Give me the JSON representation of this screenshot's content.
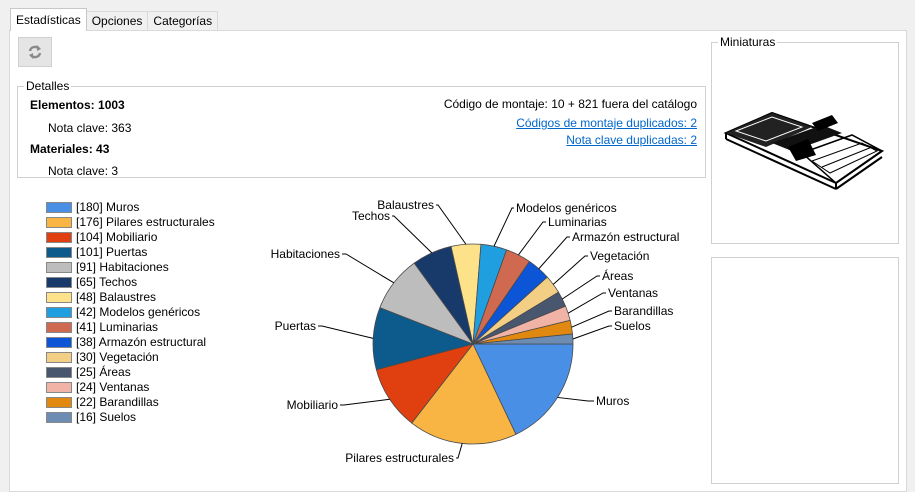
{
  "tabs": [
    {
      "label": "Estadísticas",
      "active": true
    },
    {
      "label": "Opciones",
      "active": false
    },
    {
      "label": "Categorías",
      "active": false
    }
  ],
  "refresh_icon": "refresh-icon",
  "details": {
    "title": "Detalles",
    "elements_label": "Elementos: 1003",
    "elements_keynote": "Nota clave: 363",
    "materials_label": "Materiales: 43",
    "materials_keynote": "Nota clave: 3",
    "assembly_code": "Código de montaje: 10 + 821 fuera del catálogo",
    "dup_assembly_link": "Códigos de montaje duplicados: 2",
    "dup_keynote_link": "Nota clave duplicadas: 2"
  },
  "thumbnails": {
    "title": "Miniaturas"
  },
  "chart_data": {
    "type": "pie",
    "title": "",
    "slices": [
      {
        "label": "Muros",
        "legend": "[180] Muros",
        "value": 180,
        "color": "#4a8fe6"
      },
      {
        "label": "Pilares estructurales",
        "legend": "[176] Pilares estructurales",
        "value": 176,
        "color": "#f9b544"
      },
      {
        "label": "Mobiliario",
        "legend": "[104] Mobiliario",
        "value": 104,
        "color": "#e0400f"
      },
      {
        "label": "Puertas",
        "legend": "[101] Puertas",
        "value": 101,
        "color": "#0c5b8c"
      },
      {
        "label": "Habitaciones",
        "legend": "[91] Habitaciones",
        "value": 91,
        "color": "#bdbdbd"
      },
      {
        "label": "Techos",
        "legend": "[65] Techos",
        "value": 65,
        "color": "#173a6b"
      },
      {
        "label": "Balaustres",
        "legend": "[48] Balaustres",
        "value": 48,
        "color": "#fde28a"
      },
      {
        "label": "Modelos genéricos",
        "legend": "[42] Modelos genéricos",
        "value": 42,
        "color": "#1f9ee0"
      },
      {
        "label": "Luminarias",
        "legend": "[41] Luminarias",
        "value": 41,
        "color": "#cf6a50"
      },
      {
        "label": "Armazón estructural",
        "legend": "[38] Armazón estructural",
        "value": 38,
        "color": "#0b55d6"
      },
      {
        "label": "Vegetación",
        "legend": "[30] Vegetación",
        "value": 30,
        "color": "#f3cf86"
      },
      {
        "label": "Áreas",
        "legend": "[25] Áreas",
        "value": 25,
        "color": "#48566e"
      },
      {
        "label": "Ventanas",
        "legend": "[24] Ventanas",
        "value": 24,
        "color": "#f0b3a6"
      },
      {
        "label": "Barandillas",
        "legend": "[22] Barandillas",
        "value": 22,
        "color": "#e0880f"
      },
      {
        "label": "Suelos",
        "legend": "[16] Suelos",
        "value": 16,
        "color": "#6c8cb4"
      }
    ],
    "legend_placement": "left"
  }
}
